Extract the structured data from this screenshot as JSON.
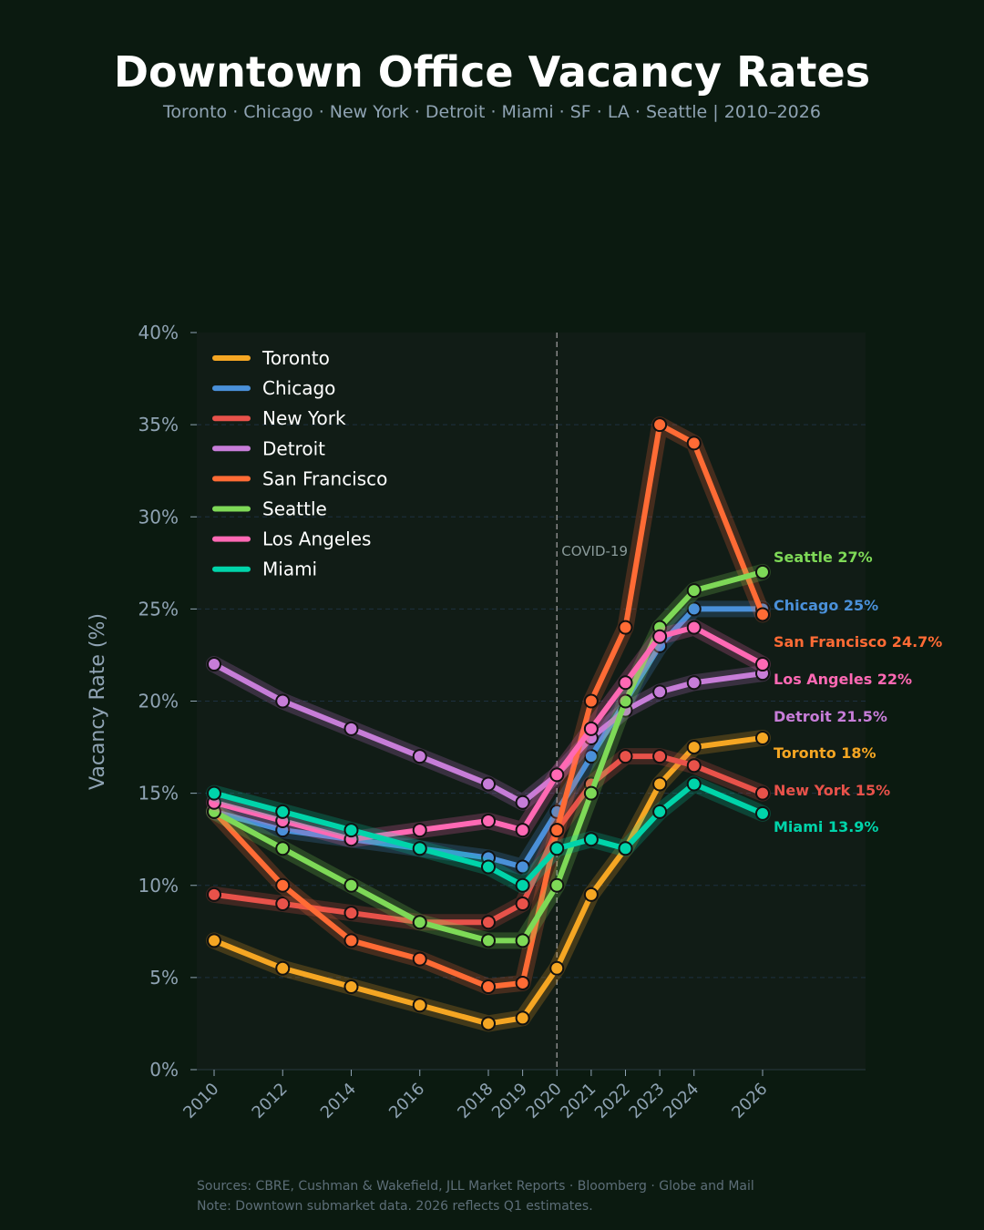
{
  "title": "Downtown Office Vacancy Rates",
  "subtitle": "Toronto · Chicago · New York · Detroit · Miami · SF · LA · Seattle  |  2010–2026",
  "footer": {
    "sources": "Sources: CBRE, Cushman & Wakefield, JLL Market Reports · Bloomberg · Globe and Mail",
    "note": "Note: Downtown submarket data. 2026 reflects Q1 estimates."
  },
  "chart_data": {
    "type": "line",
    "title": "Downtown Office Vacancy Rates",
    "xlabel": "",
    "ylabel": "Vacancy Rate (%)",
    "x": [
      2010,
      2012,
      2014,
      2016,
      2018,
      2019,
      2020,
      2021,
      2022,
      2023,
      2024,
      2026
    ],
    "x_tick_labels": [
      "2010",
      "2012",
      "2014",
      "2016",
      "2018",
      "2019",
      "2020",
      "2021",
      "2022",
      "2023",
      "2024",
      "2026"
    ],
    "ylim": [
      0,
      40
    ],
    "y_ticks": [
      0,
      5,
      10,
      15,
      20,
      25,
      30,
      35,
      40
    ],
    "y_tick_labels": [
      "0%",
      "5%",
      "10%",
      "15%",
      "20%",
      "25%",
      "30%",
      "35%",
      "40%"
    ],
    "grid": "horizontal dashed",
    "legend": "top-left",
    "annotation": {
      "label": "COVID-19",
      "x": 2020
    },
    "series": [
      {
        "name": "Toronto",
        "color": "#f5a623",
        "end_label": "Toronto 18%",
        "values": [
          7,
          5.5,
          4.5,
          3.5,
          2.5,
          2.8,
          5.5,
          9.5,
          12,
          15.5,
          17.5,
          18
        ]
      },
      {
        "name": "Chicago",
        "color": "#4a90d9",
        "end_label": "Chicago 25%",
        "values": [
          14,
          13,
          12.5,
          12,
          11.5,
          11,
          14,
          17,
          20,
          23,
          25,
          25
        ]
      },
      {
        "name": "New York",
        "color": "#e8524a",
        "end_label": "New York 15%",
        "values": [
          9.5,
          9,
          8.5,
          8,
          8,
          9,
          13,
          15.5,
          17,
          17,
          16.5,
          15
        ]
      },
      {
        "name": "Detroit",
        "color": "#c77dd8",
        "end_label": "Detroit 21.5%",
        "values": [
          22,
          20,
          18.5,
          17,
          15.5,
          14.5,
          16,
          18,
          19.5,
          20.5,
          21,
          21.5
        ]
      },
      {
        "name": "San Francisco",
        "color": "#ff6b35",
        "end_label": "San Francisco 24.7%",
        "values": [
          14,
          10,
          7,
          6,
          4.5,
          4.7,
          13,
          20,
          24,
          35,
          34,
          24.7
        ]
      },
      {
        "name": "Seattle",
        "color": "#7ed957",
        "end_label": "Seattle 27%",
        "values": [
          14,
          12,
          10,
          8,
          7,
          7,
          10,
          15,
          20,
          24,
          26,
          27
        ]
      },
      {
        "name": "Los Angeles",
        "color": "#ff69b4",
        "end_label": "Los Angeles 22%",
        "values": [
          14.5,
          13.5,
          12.5,
          13,
          13.5,
          13,
          16,
          18.5,
          21,
          23.5,
          24,
          22
        ]
      },
      {
        "name": "Miami",
        "color": "#00d4aa",
        "end_label": "Miami 13.9%",
        "values": [
          15,
          14,
          13,
          12,
          11,
          10,
          12,
          12.5,
          12,
          14,
          15.5,
          13.9
        ]
      }
    ]
  }
}
